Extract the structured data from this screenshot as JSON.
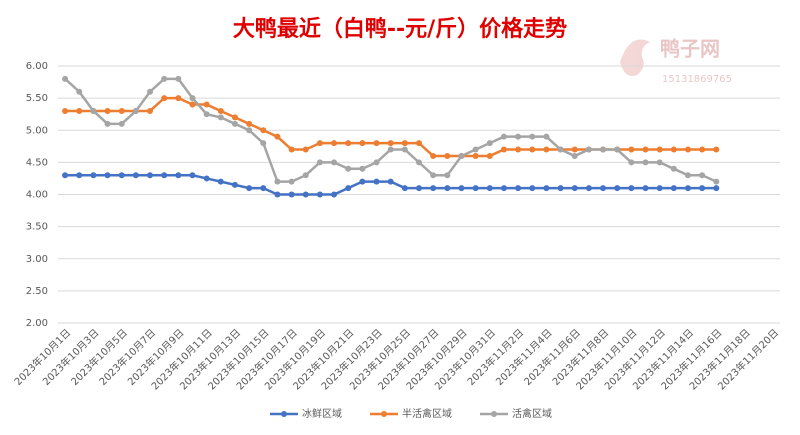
{
  "chart_data": {
    "type": "line",
    "title": "大鸭最近（白鸭--元/斤）价格走势",
    "watermark": {
      "name": "鸭子网",
      "phone": "15131869765"
    },
    "categories": [
      "2023年10月1日",
      null,
      "2023年10月3日",
      null,
      "2023年10月5日",
      null,
      "2023年10月7日",
      null,
      "2023年10月9日",
      null,
      "2023年10月11日",
      null,
      "2023年10月13日",
      null,
      "2023年10月15日",
      null,
      "2023年10月17日",
      null,
      "2023年10月19日",
      null,
      "2023年10月21日",
      null,
      "2023年10月23日",
      null,
      "2023年10月25日",
      null,
      "2023年10月27日",
      null,
      "2023年10月29日",
      null,
      "2023年10月31日",
      null,
      "2023年11月2日",
      null,
      "2023年11月4日",
      null,
      "2023年11月6日",
      null,
      "2023年11月8日",
      null,
      "2023年11月10日",
      null,
      "2023年11月12日",
      null,
      "2023年11月14日",
      null,
      "2023年11月16日",
      null,
      "2023年11月18日",
      null,
      "2023年11月20日"
    ],
    "series": [
      {
        "name": "冰鲜区域",
        "color": "#4472c4",
        "values": [
          4.3,
          4.3,
          4.3,
          4.3,
          4.3,
          4.3,
          4.3,
          4.3,
          4.3,
          4.3,
          4.25,
          4.2,
          4.15,
          4.1,
          4.1,
          4.0,
          4.0,
          4.0,
          4.0,
          4.0,
          4.1,
          4.2,
          4.2,
          4.2,
          4.1,
          4.1,
          4.1,
          4.1,
          4.1,
          4.1,
          4.1,
          4.1,
          4.1,
          4.1,
          4.1,
          4.1,
          4.1,
          4.1,
          4.1,
          4.1,
          4.1,
          4.1,
          4.1,
          4.1,
          4.1,
          4.1,
          4.1,
          null,
          null,
          null,
          null
        ]
      },
      {
        "name": "半活禽区域",
        "color": "#ed7d31",
        "values": [
          5.3,
          5.3,
          5.3,
          5.3,
          5.3,
          5.3,
          5.3,
          5.5,
          5.5,
          5.4,
          5.4,
          5.3,
          5.2,
          5.1,
          5.0,
          4.9,
          4.7,
          4.7,
          4.8,
          4.8,
          4.8,
          4.8,
          4.8,
          4.8,
          4.8,
          4.8,
          4.6,
          4.6,
          4.6,
          4.6,
          4.6,
          4.7,
          4.7,
          4.7,
          4.7,
          4.7,
          4.7,
          4.7,
          4.7,
          4.7,
          4.7,
          4.7,
          4.7,
          4.7,
          4.7,
          4.7,
          4.7,
          null,
          null,
          null,
          null
        ]
      },
      {
        "name": "活禽区域",
        "color": "#a5a5a5",
        "values": [
          5.8,
          5.6,
          5.3,
          5.1,
          5.1,
          5.3,
          5.6,
          5.8,
          5.8,
          5.5,
          5.25,
          5.2,
          5.1,
          5.0,
          4.8,
          4.2,
          4.2,
          4.3,
          4.5,
          4.5,
          4.4,
          4.4,
          4.5,
          4.7,
          4.7,
          4.5,
          4.3,
          4.3,
          4.6,
          4.7,
          4.8,
          4.9,
          4.9,
          4.9,
          4.9,
          4.7,
          4.6,
          4.7,
          4.7,
          4.7,
          4.5,
          4.5,
          4.5,
          4.4,
          4.3,
          4.3,
          4.2,
          null,
          null,
          null,
          null
        ]
      }
    ],
    "ylim": [
      2,
      6
    ],
    "yticks": [
      {
        "value": 2,
        "label": "2.00"
      },
      {
        "value": 2.5,
        "label": "2.50"
      },
      {
        "value": 3,
        "label": "3.00"
      },
      {
        "value": 3.5,
        "label": "3.50"
      },
      {
        "value": 4,
        "label": "4.00"
      },
      {
        "value": 4.5,
        "label": "4.50"
      },
      {
        "value": 5,
        "label": "5.00"
      },
      {
        "value": 5.5,
        "label": "5.50"
      },
      {
        "value": 6,
        "label": "6.00"
      }
    ],
    "grid": true,
    "legend": "bottom"
  }
}
